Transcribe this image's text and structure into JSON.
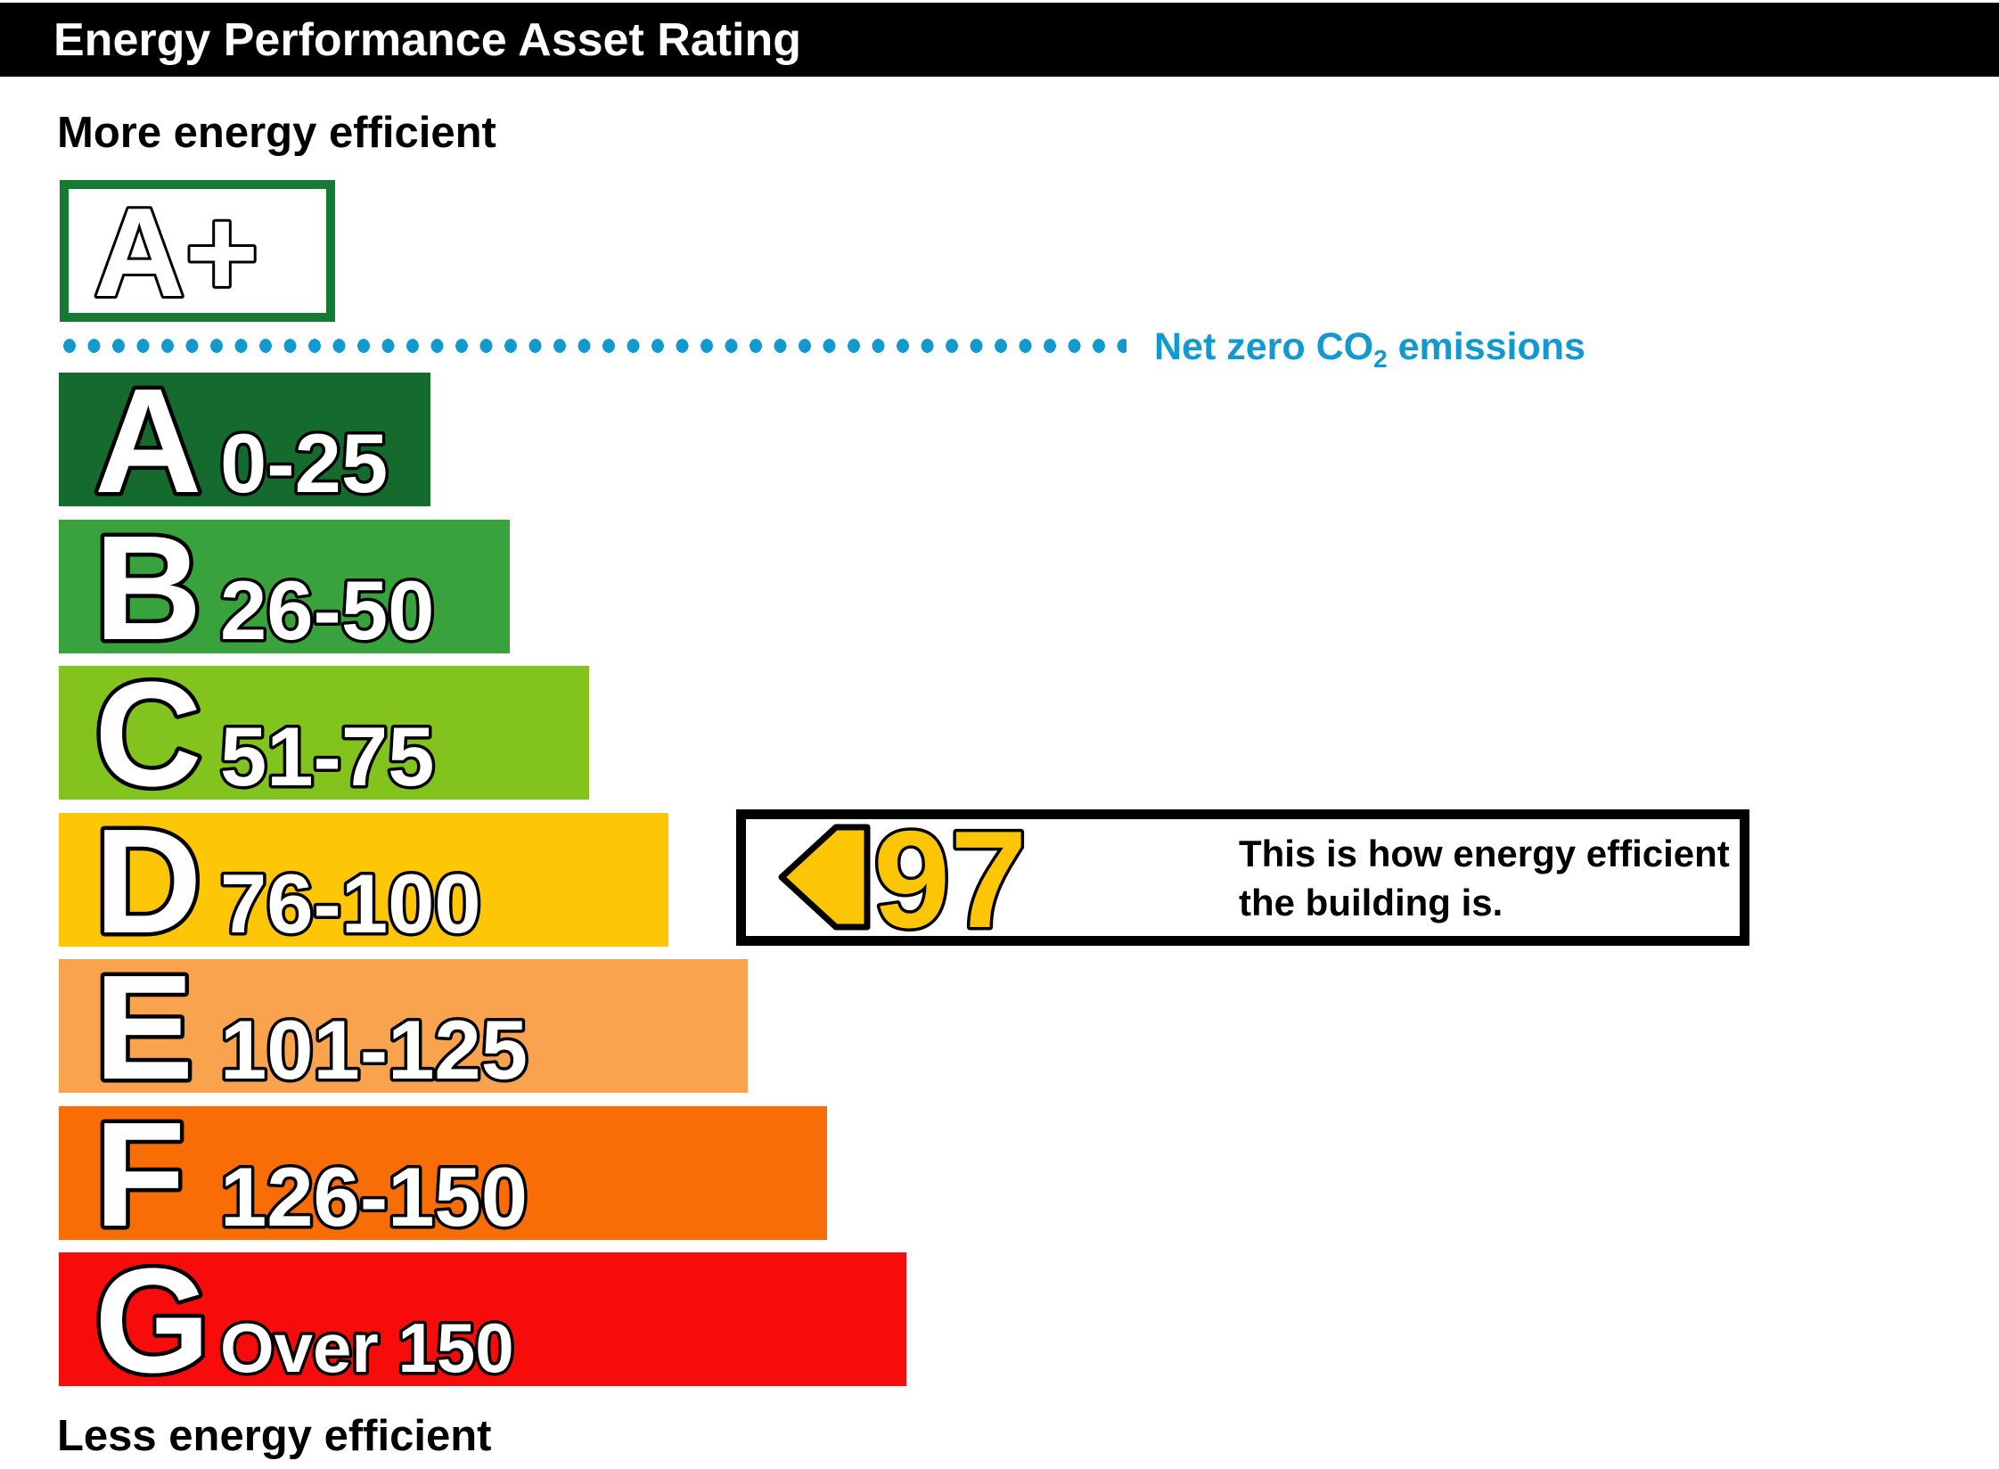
{
  "header": {
    "title": "Energy Performance Asset Rating"
  },
  "labels": {
    "more": "More energy efficient",
    "less": "Less energy efficient"
  },
  "top_band": {
    "label": "A+",
    "border_color": "#157a33"
  },
  "net_zero": {
    "prefix": "Net zero CO",
    "sub": "2",
    "suffix": " emissions",
    "color": "#1199d0",
    "dotted_color": "#1199d0"
  },
  "chart_data": {
    "type": "bar",
    "title": "Energy Performance Asset Rating",
    "legend_position": "none",
    "bands": [
      {
        "letter": "A",
        "range": "0-25",
        "color": "#156b2e"
      },
      {
        "letter": "B",
        "range": "26-50",
        "color": "#38a33c"
      },
      {
        "letter": "C",
        "range": "51-75",
        "color": "#82c31d"
      },
      {
        "letter": "D",
        "range": "76-100",
        "color": "#fdc606"
      },
      {
        "letter": "E",
        "range": "101-125",
        "color": "#f9a34e"
      },
      {
        "letter": "F",
        "range": "126-150",
        "color": "#f96d07"
      },
      {
        "letter": "G",
        "range": "Over 150",
        "color": "#f80c0b"
      }
    ],
    "current_rating": {
      "value": "97",
      "band": "D",
      "arrow_color": "#fcc606",
      "note_line1": "This is how energy efficient",
      "note_line2": "the building is."
    }
  }
}
